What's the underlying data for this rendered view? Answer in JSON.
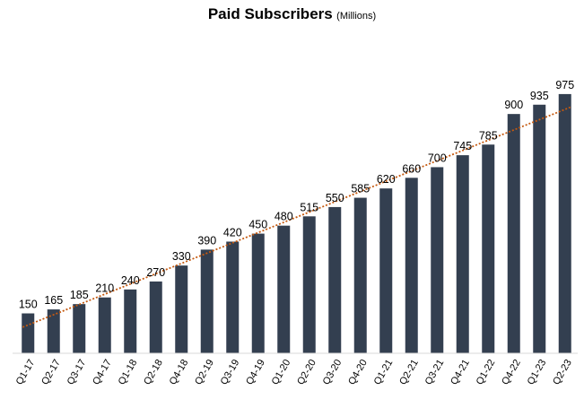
{
  "chart_data": {
    "type": "bar",
    "title": "Paid Subscribers",
    "subtitle": "(Millions)",
    "xlabel": "",
    "ylabel": "",
    "categories": [
      "Q1-17",
      "Q2-17",
      "Q3-17",
      "Q4-17",
      "Q1-18",
      "Q2-18",
      "Q4-18",
      "Q2-19",
      "Q3-19",
      "Q4-19",
      "Q1-20",
      "Q2-20",
      "Q3-20",
      "Q4-20",
      "Q1-21",
      "Q2-21",
      "Q3-21",
      "Q4-21",
      "Q1-22",
      "Q4-22",
      "Q1-23",
      "Q2-23"
    ],
    "values": [
      150,
      165,
      185,
      210,
      240,
      270,
      330,
      390,
      420,
      450,
      480,
      515,
      550,
      585,
      620,
      660,
      700,
      745,
      785,
      900,
      935,
      975
    ],
    "ylim": [
      0,
      1000
    ],
    "grid": false,
    "legend": "none",
    "trendline": "linear",
    "colors": {
      "bar": "#333f50",
      "trendline": "#c55a11"
    }
  }
}
